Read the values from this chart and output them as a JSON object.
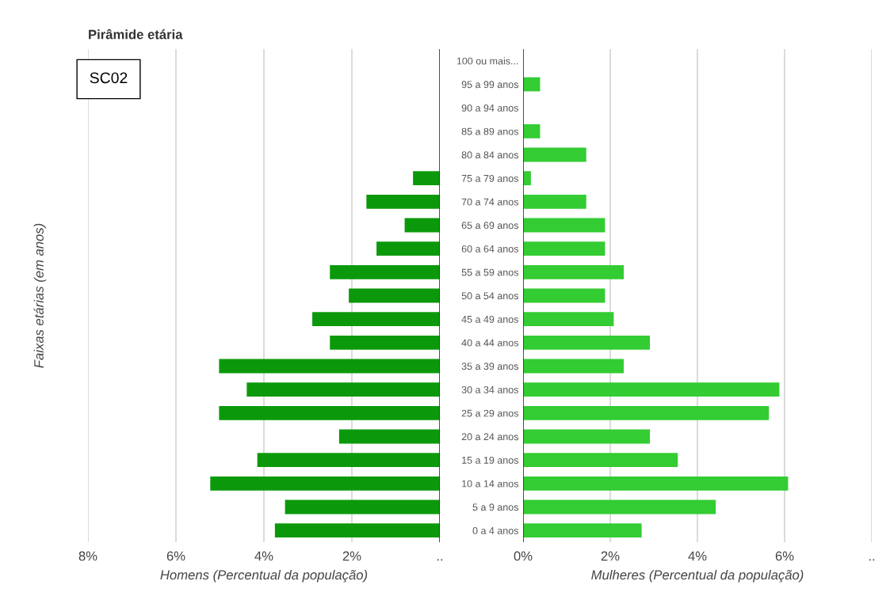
{
  "chart_data": [
    {
      "type": "bar",
      "orientation": "horizontal",
      "title": "Pirâmide etária",
      "xlabel": "Homens (Percentual da população)",
      "ylabel": "Faixas etárias (em anos)",
      "annotations": [
        "SC02"
      ],
      "categories": [
        null,
        null,
        null,
        null,
        null,
        null,
        null,
        null,
        null,
        null,
        null,
        null,
        null,
        null,
        null,
        null,
        null,
        null,
        null,
        null,
        null
      ],
      "values": [
        0,
        0,
        0,
        0,
        0,
        0.61,
        1.67,
        0.8,
        1.44,
        2.5,
        2.07,
        2.9,
        2.5,
        5.02,
        4.39,
        5.02,
        2.29,
        4.15,
        5.22,
        3.52,
        3.75
      ],
      "color": "#0b990b",
      "xlim": [
        8,
        0
      ],
      "xticks": [
        {
          "value": 8,
          "label": "8%"
        },
        {
          "value": 6,
          "label": "6%"
        },
        {
          "value": 4,
          "label": "4%"
        },
        {
          "value": 2,
          "label": "2%"
        },
        {
          "value": 0,
          "label": ".."
        }
      ],
      "grid": "x",
      "tick_labels": "x"
    },
    {
      "type": "bar",
      "orientation": "horizontal",
      "xlabel": "Mulheres (Percentual da população)",
      "categories": [
        "100 ou mais...",
        "95 a 99 anos",
        "90 a 94 anos",
        "85 a 89 anos",
        "80 a 84 anos",
        "75 a 79 anos",
        "70 a 74 anos",
        "65 a 69 anos",
        "60 a 64 anos",
        "55 a 59 anos",
        "50 a 54 anos",
        "45 a 49 anos",
        "40 a 44 anos",
        "35 a 39 anos",
        "30 a 34 anos",
        "25 a 29 anos",
        "20 a 24 anos",
        "15 a 19 anos",
        "10 a 14 anos",
        "5 a 9 anos",
        "0 a 4 anos"
      ],
      "values": [
        0,
        0.39,
        0,
        0.39,
        1.45,
        0.18,
        1.45,
        1.88,
        1.88,
        2.31,
        1.88,
        2.08,
        2.91,
        2.31,
        5.88,
        5.64,
        2.91,
        3.55,
        6.08,
        4.42,
        2.72
      ],
      "color": "#33cc33",
      "xlim": [
        0,
        8
      ],
      "xticks": [
        {
          "value": 0,
          "label": "0%"
        },
        {
          "value": 2,
          "label": "2%"
        },
        {
          "value": 4,
          "label": "4%"
        },
        {
          "value": 6,
          "label": "6%"
        },
        {
          "value": 8,
          "label": ".."
        }
      ],
      "grid": "x"
    }
  ]
}
